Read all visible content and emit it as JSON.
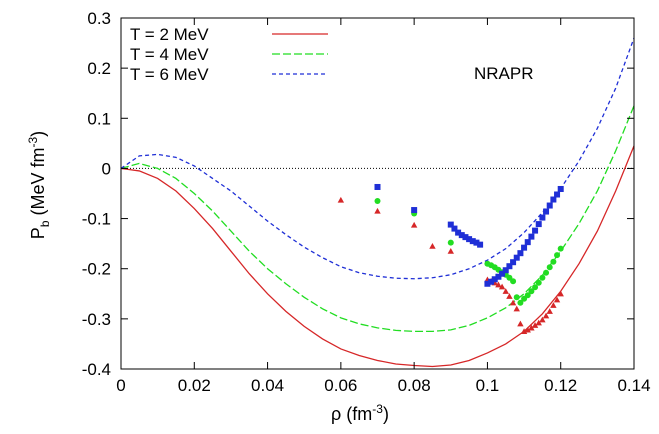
{
  "chart_data": {
    "type": "line",
    "title": "",
    "annotation": "NRAPR",
    "xlabel": "ρ (fm",
    "xlabel_sup": "-3",
    "xlabel_end": ")",
    "ylabel": "P",
    "ylabel_sub": "b",
    "ylabel_rest": " (MeV fm",
    "ylabel_sup": "-3",
    "ylabel_end": ")",
    "xlim": [
      0,
      0.14
    ],
    "ylim": [
      -0.4,
      0.3
    ],
    "xticks": [
      0,
      0.02,
      0.04,
      0.06,
      0.08,
      0.1,
      0.12,
      0.14
    ],
    "xtick_labels": [
      "0",
      "0.02",
      "0.04",
      "0.06",
      "0.08",
      "0.1",
      "0.12",
      "0.14"
    ],
    "yticks": [
      -0.4,
      -0.3,
      -0.2,
      -0.1,
      0,
      0.1,
      0.2,
      0.3
    ],
    "ytick_labels": [
      "-0.4",
      "-0.3",
      "-0.2",
      "-0.1",
      "0",
      "0.1",
      "0.2",
      "0.3"
    ],
    "grid": false,
    "legend_position": "top-left",
    "zero_line": true,
    "series": [
      {
        "name": "T = 2 MeV",
        "color": "#d62728",
        "style": "solid",
        "x": [
          0,
          0.005,
          0.01,
          0.015,
          0.02,
          0.025,
          0.03,
          0.035,
          0.04,
          0.045,
          0.05,
          0.055,
          0.06,
          0.065,
          0.07,
          0.075,
          0.08,
          0.085,
          0.09,
          0.095,
          0.1,
          0.105,
          0.11,
          0.115,
          0.12,
          0.125,
          0.13,
          0.135,
          0.14
        ],
        "y": [
          0,
          -0.005,
          -0.02,
          -0.045,
          -0.08,
          -0.12,
          -0.165,
          -0.21,
          -0.25,
          -0.285,
          -0.315,
          -0.34,
          -0.36,
          -0.373,
          -0.383,
          -0.39,
          -0.393,
          -0.395,
          -0.392,
          -0.383,
          -0.368,
          -0.35,
          -0.325,
          -0.29,
          -0.245,
          -0.19,
          -0.125,
          -0.045,
          0.045
        ]
      },
      {
        "name": "T = 4 MeV",
        "color": "#22dd22",
        "style": "dashed",
        "x": [
          0,
          0.005,
          0.01,
          0.015,
          0.02,
          0.025,
          0.03,
          0.035,
          0.04,
          0.045,
          0.05,
          0.055,
          0.06,
          0.065,
          0.07,
          0.075,
          0.08,
          0.085,
          0.09,
          0.095,
          0.1,
          0.105,
          0.11,
          0.115,
          0.12,
          0.125,
          0.13,
          0.135,
          0.14
        ],
        "y": [
          0,
          0.01,
          0.0,
          -0.02,
          -0.05,
          -0.085,
          -0.125,
          -0.165,
          -0.2,
          -0.23,
          -0.257,
          -0.28,
          -0.298,
          -0.31,
          -0.318,
          -0.323,
          -0.325,
          -0.325,
          -0.322,
          -0.313,
          -0.298,
          -0.278,
          -0.25,
          -0.213,
          -0.165,
          -0.11,
          -0.045,
          0.035,
          0.125
        ]
      },
      {
        "name": "T = 6 MeV",
        "color": "#1f2fd6",
        "style": "short-dashed",
        "x": [
          0,
          0.005,
          0.01,
          0.015,
          0.02,
          0.025,
          0.03,
          0.035,
          0.04,
          0.045,
          0.05,
          0.055,
          0.06,
          0.065,
          0.07,
          0.075,
          0.08,
          0.085,
          0.09,
          0.095,
          0.1,
          0.105,
          0.11,
          0.115,
          0.12,
          0.125,
          0.13,
          0.135,
          0.14
        ],
        "y": [
          0,
          0.025,
          0.028,
          0.022,
          0.005,
          -0.02,
          -0.045,
          -0.075,
          -0.105,
          -0.132,
          -0.157,
          -0.178,
          -0.196,
          -0.208,
          -0.215,
          -0.219,
          -0.22,
          -0.218,
          -0.212,
          -0.2,
          -0.183,
          -0.16,
          -0.128,
          -0.088,
          -0.04,
          0.015,
          0.08,
          0.16,
          0.26
        ]
      }
    ],
    "scatter_series": [
      {
        "name": "T = 2 MeV points",
        "color": "#d62728",
        "marker": "triangle",
        "x": [
          0.06,
          0.07,
          0.08,
          0.085,
          0.09,
          0.1,
          0.101,
          0.102,
          0.103,
          0.104,
          0.105,
          0.106,
          0.107,
          0.108,
          0.109,
          0.11,
          0.111,
          0.112,
          0.113,
          0.114,
          0.115,
          0.116,
          0.117,
          0.118,
          0.119,
          0.12
        ],
        "y": [
          -0.063,
          -0.085,
          -0.113,
          -0.155,
          -0.165,
          -0.222,
          -0.225,
          -0.228,
          -0.232,
          -0.236,
          -0.245,
          -0.255,
          -0.268,
          -0.28,
          -0.31,
          -0.325,
          -0.322,
          -0.318,
          -0.313,
          -0.308,
          -0.302,
          -0.294,
          -0.285,
          -0.273,
          -0.262,
          -0.25
        ]
      },
      {
        "name": "T = 4 MeV points",
        "color": "#22dd22",
        "marker": "circle",
        "x": [
          0.07,
          0.08,
          0.09,
          0.1,
          0.101,
          0.102,
          0.103,
          0.104,
          0.105,
          0.106,
          0.107,
          0.108,
          0.109,
          0.11,
          0.111,
          0.112,
          0.113,
          0.114,
          0.115,
          0.116,
          0.117,
          0.118,
          0.119,
          0.12
        ],
        "y": [
          -0.065,
          -0.09,
          -0.148,
          -0.19,
          -0.193,
          -0.197,
          -0.202,
          -0.207,
          -0.212,
          -0.218,
          -0.225,
          -0.257,
          -0.268,
          -0.26,
          -0.253,
          -0.245,
          -0.237,
          -0.228,
          -0.218,
          -0.208,
          -0.197,
          -0.186,
          -0.173,
          -0.16
        ]
      },
      {
        "name": "T = 6 MeV points",
        "color": "#1f2fd6",
        "marker": "square",
        "x": [
          0.07,
          0.08,
          0.09,
          0.091,
          0.092,
          0.093,
          0.094,
          0.095,
          0.096,
          0.097,
          0.098,
          0.1,
          0.101,
          0.102,
          0.103,
          0.104,
          0.105,
          0.106,
          0.107,
          0.108,
          0.109,
          0.11,
          0.111,
          0.112,
          0.113,
          0.114,
          0.115,
          0.116,
          0.117,
          0.118,
          0.119,
          0.12
        ],
        "y": [
          -0.037,
          -0.083,
          -0.112,
          -0.12,
          -0.128,
          -0.133,
          -0.137,
          -0.141,
          -0.145,
          -0.148,
          -0.152,
          -0.23,
          -0.226,
          -0.221,
          -0.216,
          -0.21,
          -0.203,
          -0.195,
          -0.187,
          -0.178,
          -0.169,
          -0.158,
          -0.147,
          -0.136,
          -0.124,
          -0.111,
          -0.098,
          -0.086,
          -0.074,
          -0.062,
          -0.052,
          -0.041
        ]
      }
    ]
  }
}
